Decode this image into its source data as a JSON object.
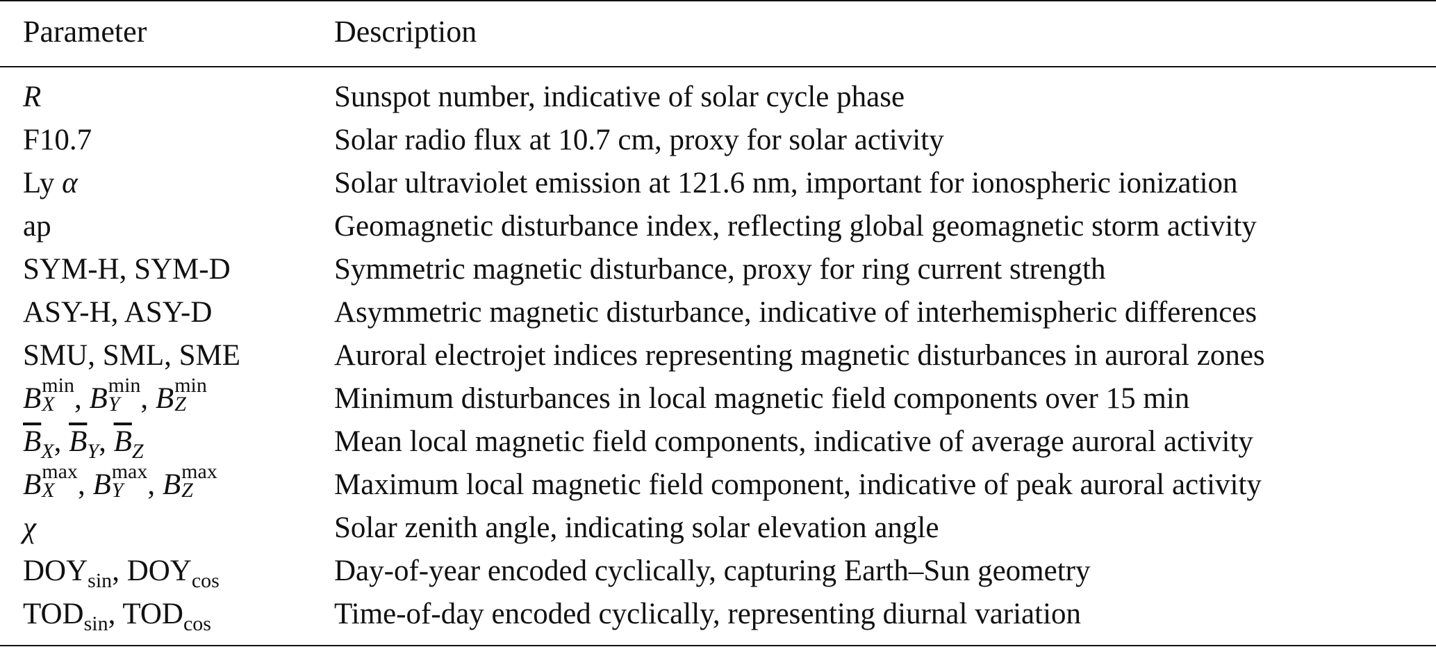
{
  "table": {
    "headers": {
      "parameter": "Parameter",
      "description": "Description"
    },
    "rows": [
      {
        "parameter": "R",
        "description": "Sunspot number, indicative of solar cycle phase"
      },
      {
        "parameter": "F10.7",
        "description": "Solar radio flux at 10.7 cm, proxy for solar activity"
      },
      {
        "parameter": "Ly α",
        "description": "Solar ultraviolet emission at 121.6 nm, important for ionospheric ionization"
      },
      {
        "parameter": "ap",
        "description": "Geomagnetic disturbance index, reflecting global geomagnetic storm activity"
      },
      {
        "parameter": "SYM-H, SYM-D",
        "description": "Symmetric magnetic disturbance, proxy for ring current strength"
      },
      {
        "parameter": "ASY-H, ASY-D",
        "description": "Asymmetric magnetic disturbance, indicative of interhemispheric differences"
      },
      {
        "parameter": "SMU, SML, SME",
        "description": "Auroral electrojet indices representing magnetic disturbances in auroral zones"
      },
      {
        "parameter": "B_X^min, B_Y^min, B_Z^min",
        "description": "Minimum disturbances in local magnetic field components over 15 min"
      },
      {
        "parameter": "B̄_X, B̄_Y, B̄_Z",
        "description": "Mean local magnetic field components, indicative of average auroral activity"
      },
      {
        "parameter": "B_X^max, B_Y^max, B_Z^max",
        "description": "Maximum local magnetic field component, indicative of peak auroral activity"
      },
      {
        "parameter": "χ",
        "description": "Solar zenith angle, indicating solar elevation angle"
      },
      {
        "parameter": "DOY_sin, DOY_cos",
        "description": "Day-of-year encoded cyclically, capturing Earth–Sun geometry"
      },
      {
        "parameter": "TOD_sin, TOD_cos",
        "description": "Time-of-day encoded cyclically, representing diurnal variation"
      }
    ],
    "symbols": {
      "R": "R",
      "ly": "Ly",
      "alpha": "α",
      "B": "B",
      "X": "X",
      "Y": "Y",
      "Z": "Z",
      "min": "min",
      "max": "max",
      "chi": "χ",
      "DOY": "DOY",
      "TOD": "TOD",
      "sin": "sin",
      "cos": "cos",
      "sep": ", "
    }
  }
}
